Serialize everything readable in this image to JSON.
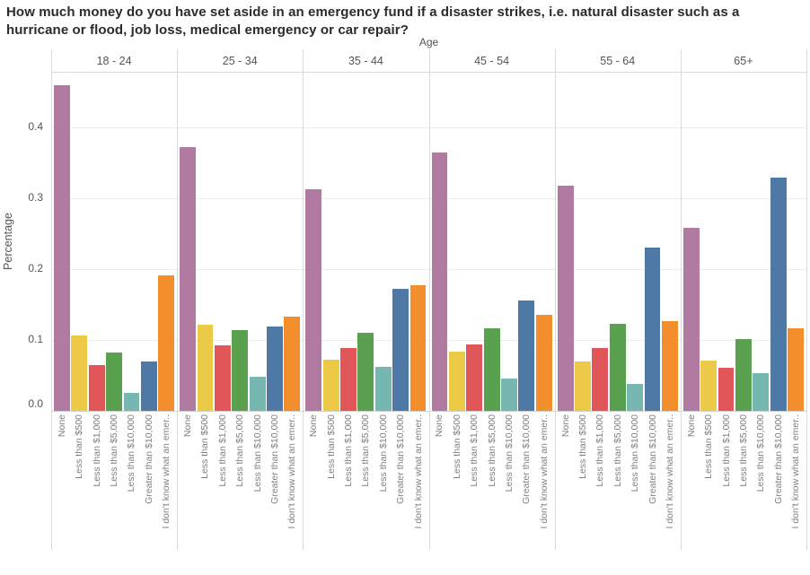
{
  "title": "How much money do you have set aside in an emergency fund if a disaster strikes, i.e. natural disaster such as a hurricane or flood, job loss, medical emergency or car repair?",
  "chart_data": {
    "type": "bar",
    "title": "How much money do you have set aside in an emergency fund if a disaster strikes, i.e. natural disaster such as a hurricane or flood, job loss, medical emergency or car repair?",
    "facet_label": "Age",
    "ylabel": "Percentage",
    "xlabel": "",
    "ylim": [
      0,
      0.478
    ],
    "yticks": [
      "0.0",
      "0.1",
      "0.2",
      "0.3",
      "0.4"
    ],
    "grid": true,
    "legend": "none",
    "age_groups": [
      "18 - 24",
      "25 - 34",
      "35 - 44",
      "45 - 54",
      "55 - 64",
      "65+"
    ],
    "categories": [
      "None",
      "Less than $500",
      "Less than $1,000",
      "Less than $5,000",
      "Less than $10,000",
      "Greater than $10,000",
      "I don't know what an emer.."
    ],
    "colors": [
      "#b07aa1",
      "#edc948",
      "#e15759",
      "#59a14f",
      "#76b7b2",
      "#4e79a7",
      "#f28e2b"
    ],
    "series": [
      {
        "name": "18 - 24",
        "values": [
          0.46,
          0.106,
          0.065,
          0.082,
          0.025,
          0.07,
          0.192
        ]
      },
      {
        "name": "25 - 34",
        "values": [
          0.372,
          0.122,
          0.092,
          0.114,
          0.048,
          0.119,
          0.133
        ]
      },
      {
        "name": "35 - 44",
        "values": [
          0.313,
          0.072,
          0.089,
          0.11,
          0.062,
          0.173,
          0.178
        ]
      },
      {
        "name": "45 - 54",
        "values": [
          0.365,
          0.084,
          0.094,
          0.117,
          0.046,
          0.156,
          0.135
        ]
      },
      {
        "name": "55 - 64",
        "values": [
          0.318,
          0.07,
          0.089,
          0.123,
          0.038,
          0.231,
          0.127
        ]
      },
      {
        "name": "65+",
        "values": [
          0.259,
          0.071,
          0.061,
          0.102,
          0.053,
          0.33,
          0.116
        ]
      }
    ]
  }
}
